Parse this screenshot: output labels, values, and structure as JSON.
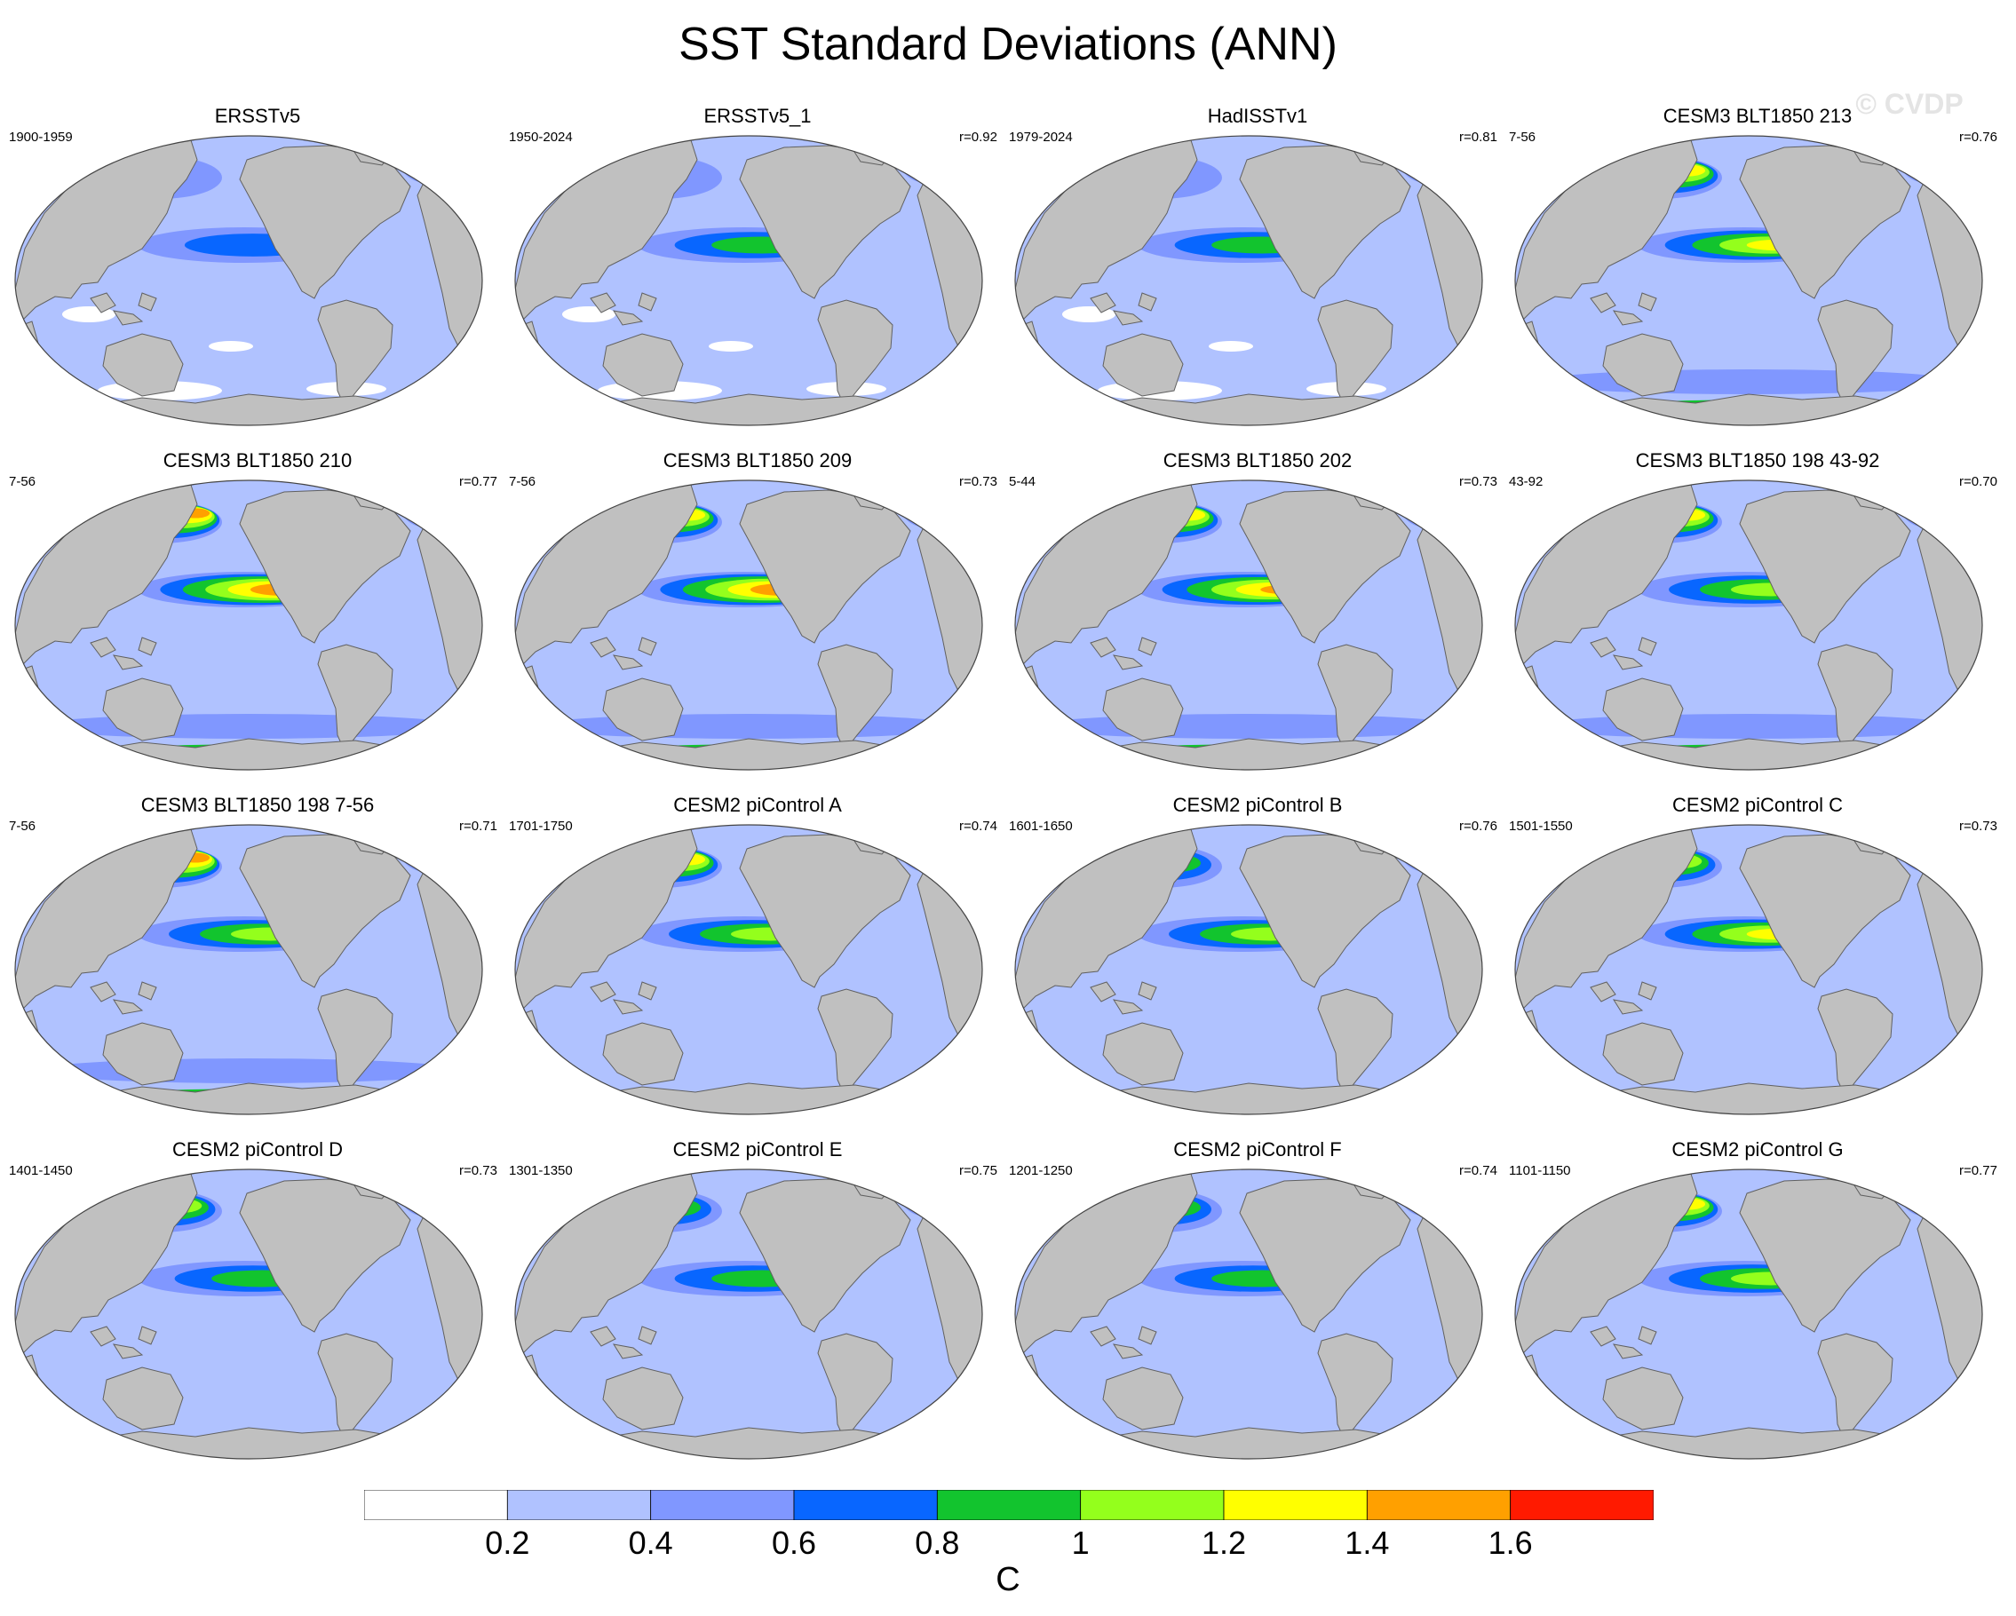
{
  "title": "SST Standard Deviations (ANN)",
  "watermark": "© CVDP",
  "units": "C",
  "colors": {
    "land": "#c0c0c0",
    "coast": "#606060",
    "levels": [
      "#ffffff",
      "#b0c2ff",
      "#8097ff",
      "#0866ff",
      "#12c42e",
      "#94ff1c",
      "#ffff00",
      "#ffa000",
      "#ff1a00"
    ]
  },
  "colorbar": {
    "tick_labels": [
      "0.2",
      "0.4",
      "0.6",
      "0.8",
      "1",
      "1.2",
      "1.4",
      "1.6"
    ]
  },
  "panels": [
    {
      "title": "ERSSTv5",
      "years": "1900-1959",
      "corr": "",
      "peak": 0.7,
      "north": 0.55,
      "south": "white"
    },
    {
      "title": "ERSSTv5_1",
      "years": "1950-2024",
      "corr": "r=0.92",
      "peak": 0.9,
      "north": 0.5,
      "south": "white"
    },
    {
      "title": "HadISSTv1",
      "years": "1979-2024",
      "corr": "r=0.81",
      "peak": 0.9,
      "north": 0.5,
      "south": "white"
    },
    {
      "title": "CESM3 BLT1850 213",
      "years": "7-56",
      "corr": "r=0.76",
      "peak": 1.3,
      "north": 1.3,
      "south": "blue"
    },
    {
      "title": "CESM3 BLT1850 210",
      "years": "7-56",
      "corr": "r=0.77",
      "peak": 1.7,
      "north": 1.5,
      "south": "blue"
    },
    {
      "title": "CESM3 BLT1850 209",
      "years": "7-56",
      "corr": "r=0.73",
      "peak": 1.7,
      "north": 1.4,
      "south": "blue"
    },
    {
      "title": "CESM3 BLT1850 202",
      "years": "5-44",
      "corr": "r=0.73",
      "peak": 1.5,
      "north": 1.4,
      "south": "blue"
    },
    {
      "title": "CESM3 BLT1850 198 43-92",
      "years": "43-92",
      "corr": "r=0.70",
      "peak": 1.1,
      "north": 1.4,
      "south": "blue"
    },
    {
      "title": "CESM3 BLT1850 198 7-56",
      "years": "7-56",
      "corr": "r=0.71",
      "peak": 1.1,
      "north": 1.5,
      "south": "blue"
    },
    {
      "title": "CESM2 piControl A",
      "years": "1701-1750",
      "corr": "r=0.74",
      "peak": 1.1,
      "north": 1.3,
      "south": "light"
    },
    {
      "title": "CESM2 piControl B",
      "years": "1601-1650",
      "corr": "r=0.76",
      "peak": 1.1,
      "north": 0.9,
      "south": "light"
    },
    {
      "title": "CESM2 piControl C",
      "years": "1501-1550",
      "corr": "r=0.73",
      "peak": 1.3,
      "north": 1.2,
      "south": "light"
    },
    {
      "title": "CESM2 piControl D",
      "years": "1401-1450",
      "corr": "r=0.73",
      "peak": 0.9,
      "north": 1.2,
      "south": "light"
    },
    {
      "title": "CESM2 piControl E",
      "years": "1301-1350",
      "corr": "r=0.75",
      "peak": 0.9,
      "north": 1.0,
      "south": "light"
    },
    {
      "title": "CESM2 piControl F",
      "years": "1201-1250",
      "corr": "r=0.74",
      "peak": 0.9,
      "north": 0.9,
      "south": "light"
    },
    {
      "title": "CESM2 piControl G",
      "years": "1101-1150",
      "corr": "r=0.77",
      "peak": 1.1,
      "north": 1.3,
      "south": "light"
    }
  ]
}
